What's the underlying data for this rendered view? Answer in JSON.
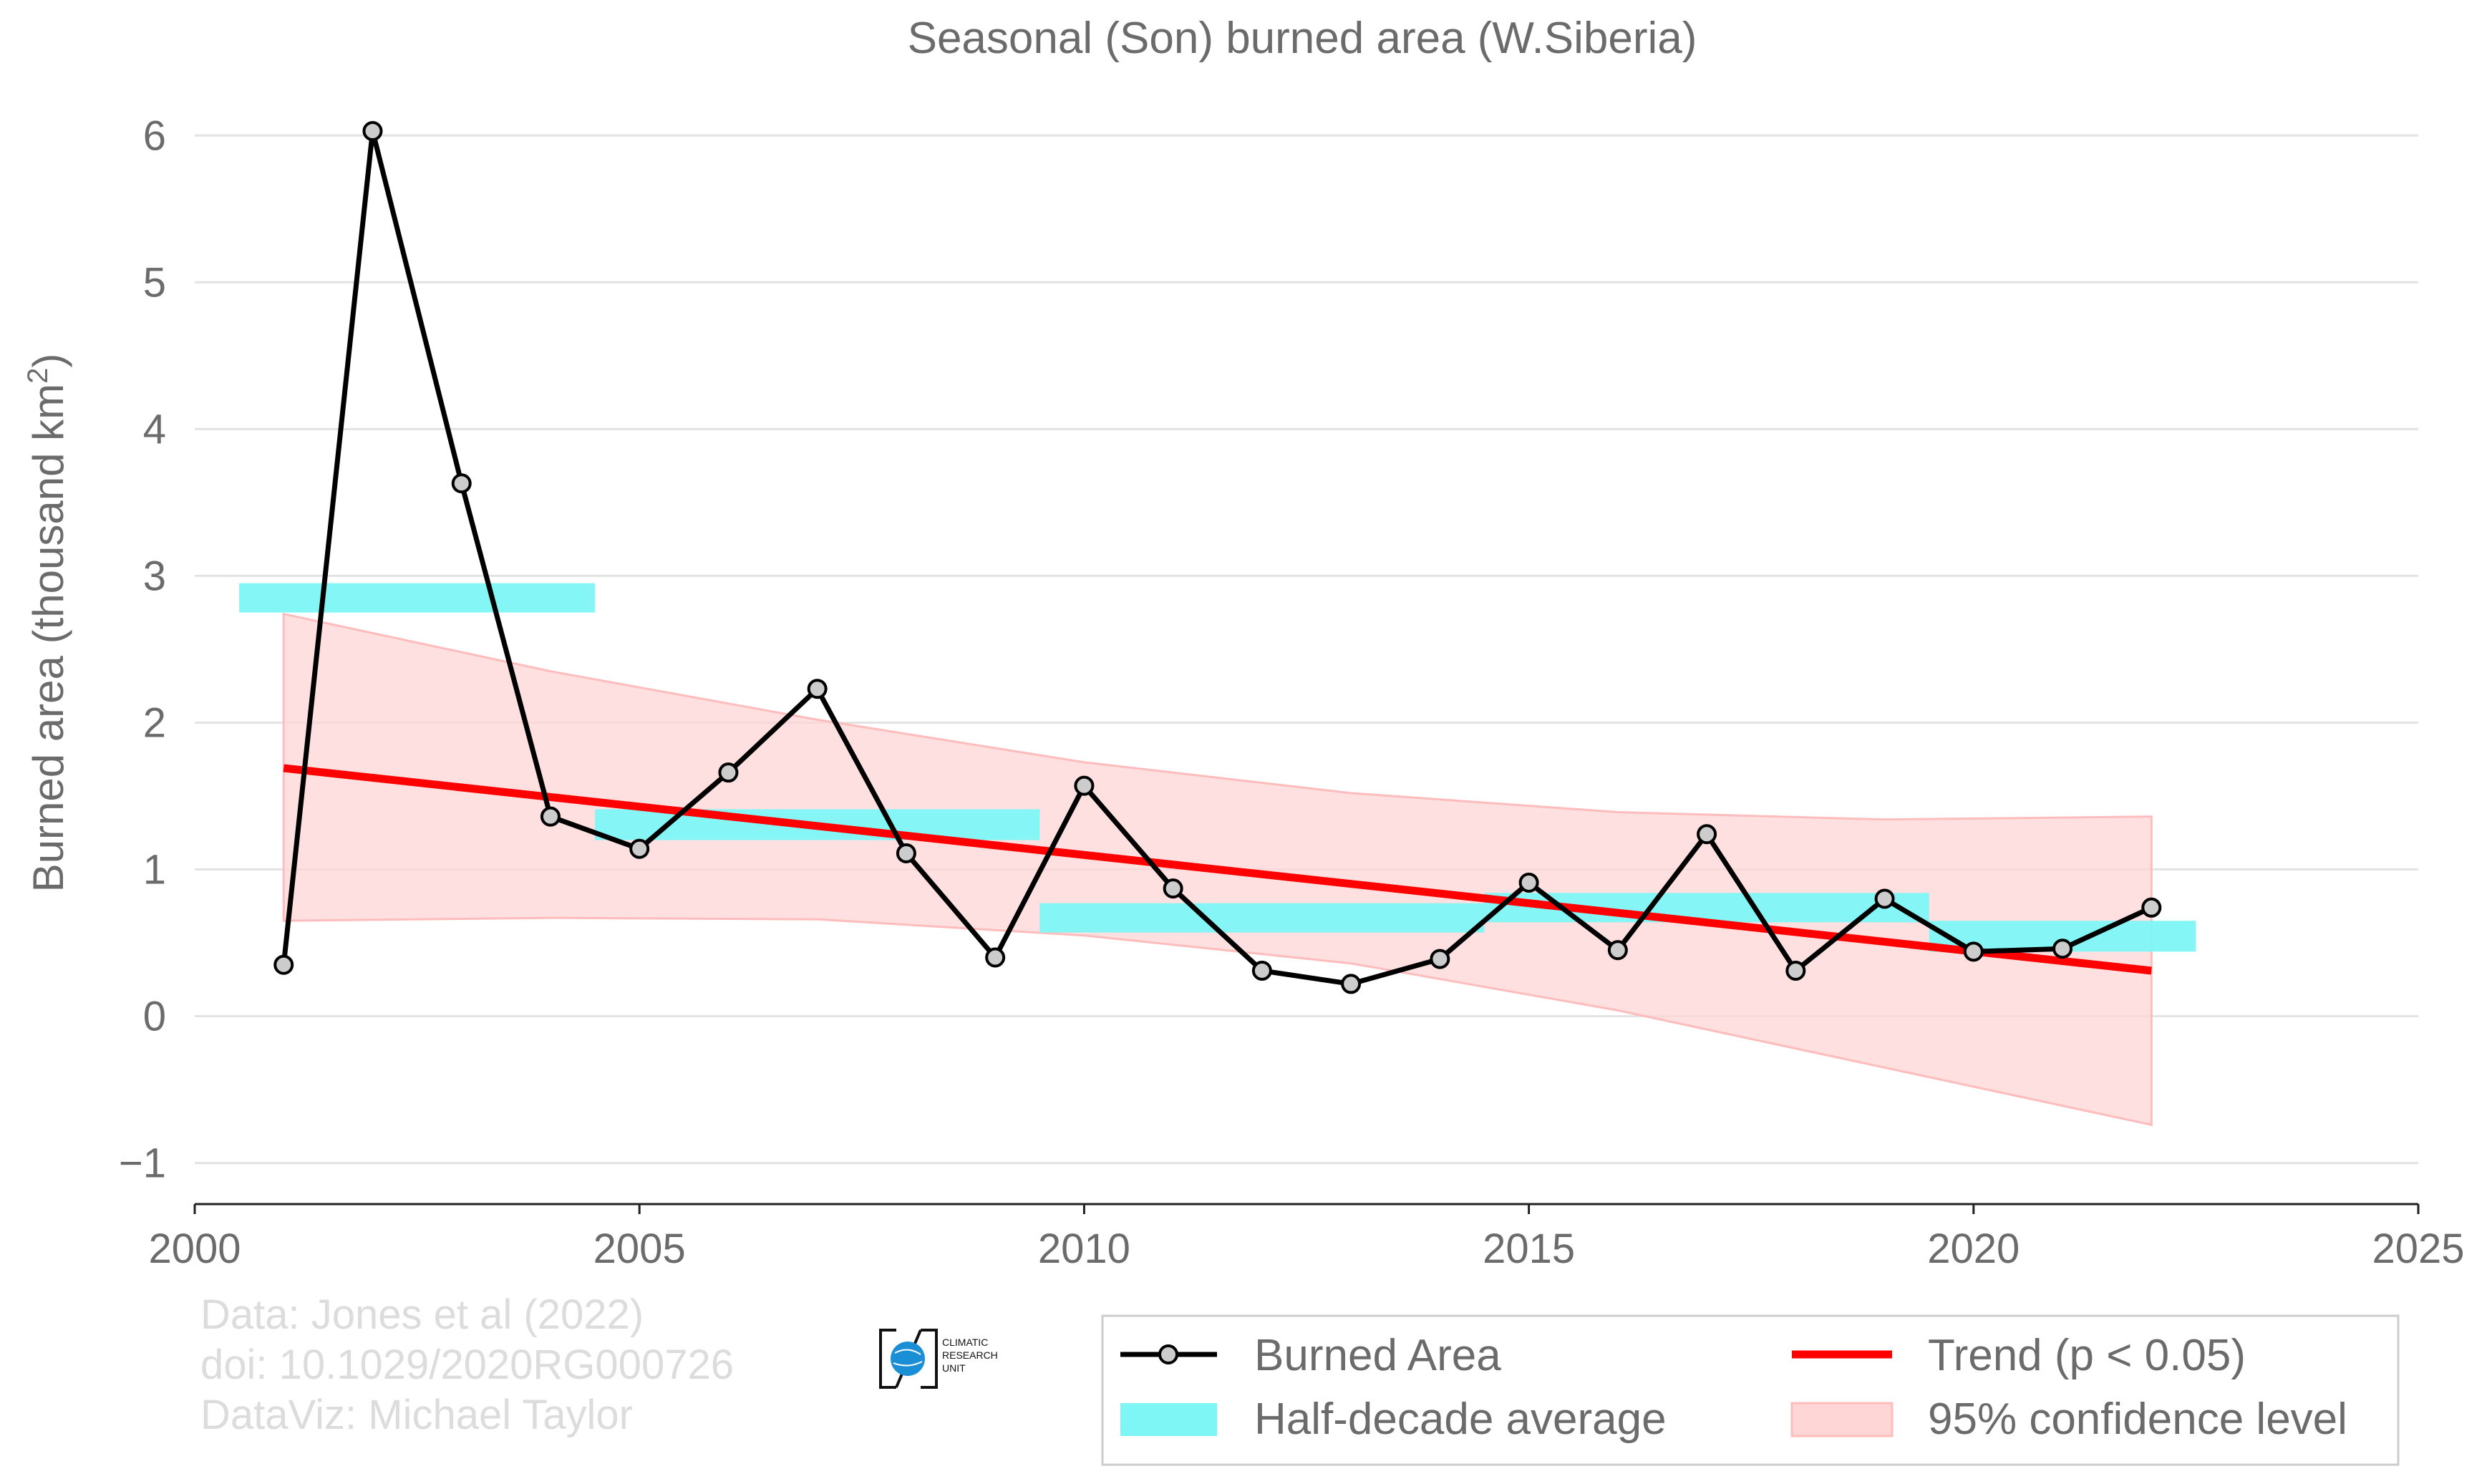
{
  "chart_data": {
    "type": "line",
    "title": "Seasonal (Son) burned area (W.Siberia)",
    "ylabel": "Burned area (thousand km",
    "ylabel_sup": "2",
    "ylabel_close": ")",
    "xlim": [
      2000,
      2025
    ],
    "ylim": [
      -1.28,
      6.25
    ],
    "x_ticks": [
      2000,
      2005,
      2010,
      2015,
      2020,
      2025
    ],
    "y_ticks": [
      -1,
      0,
      1,
      2,
      3,
      4,
      5,
      6
    ],
    "y_tick_labels": [
      "−1",
      "0",
      "1",
      "2",
      "3",
      "4",
      "5",
      "6"
    ],
    "grid": "horizontal",
    "series": [
      {
        "name": "Burned Area",
        "color": "#000000",
        "marker_fill": "#cccccc",
        "x": [
          2001,
          2002,
          2003,
          2004,
          2005,
          2006,
          2007,
          2008,
          2009,
          2010,
          2011,
          2012,
          2013,
          2014,
          2015,
          2016,
          2017,
          2018,
          2019,
          2020,
          2021,
          2022
        ],
        "y": [
          0.35,
          6.03,
          3.63,
          1.36,
          1.14,
          1.66,
          2.23,
          1.11,
          0.4,
          1.57,
          0.87,
          0.31,
          0.22,
          0.39,
          0.91,
          0.45,
          1.24,
          0.31,
          0.8,
          0.44,
          0.46,
          0.74
        ]
      }
    ],
    "half_decade_average": {
      "name": "Half-decade average",
      "color": "#7ef6f6",
      "bars": [
        {
          "x0": 2000.5,
          "x1": 2004.5,
          "y0": 2.75,
          "y1": 2.95
        },
        {
          "x0": 2004.5,
          "x1": 2009.5,
          "y0": 1.2,
          "y1": 1.41
        },
        {
          "x0": 2009.5,
          "x1": 2014.5,
          "y0": 0.57,
          "y1": 0.77
        },
        {
          "x0": 2014.5,
          "x1": 2019.5,
          "y0": 0.64,
          "y1": 0.84
        },
        {
          "x0": 2019.5,
          "x1": 2022.5,
          "y0": 0.44,
          "y1": 0.65
        }
      ]
    },
    "trend": {
      "name": "Trend (p < 0.05)",
      "color": "#ff0000",
      "x": [
        2001,
        2022
      ],
      "y": [
        1.69,
        0.31
      ]
    },
    "confidence_band": {
      "name": "95% confidence level",
      "color": "#ffc8c8",
      "x": [
        2001,
        2004,
        2007,
        2010,
        2013,
        2016,
        2019,
        2022
      ],
      "upper": [
        2.74,
        2.35,
        2.02,
        1.73,
        1.52,
        1.39,
        1.34,
        1.36
      ],
      "lower": [
        0.65,
        0.67,
        0.66,
        0.55,
        0.36,
        0.04,
        -0.35,
        -0.74
      ]
    },
    "legend": {
      "position": "bottom-right",
      "entries": [
        "Burned Area",
        "Trend (p < 0.05)",
        "Half-decade average",
        "95% confidence level"
      ]
    }
  },
  "credits": {
    "line1": "Data: Jones et al (2022)",
    "line2": "doi: 10.1029/2020RG000726",
    "line3": "DataViz: Michael Taylor"
  },
  "logo": {
    "line1": "CLIMATIC",
    "line2": "RESEARCH",
    "line3": "UNIT",
    "color": "#1a8fd6"
  }
}
